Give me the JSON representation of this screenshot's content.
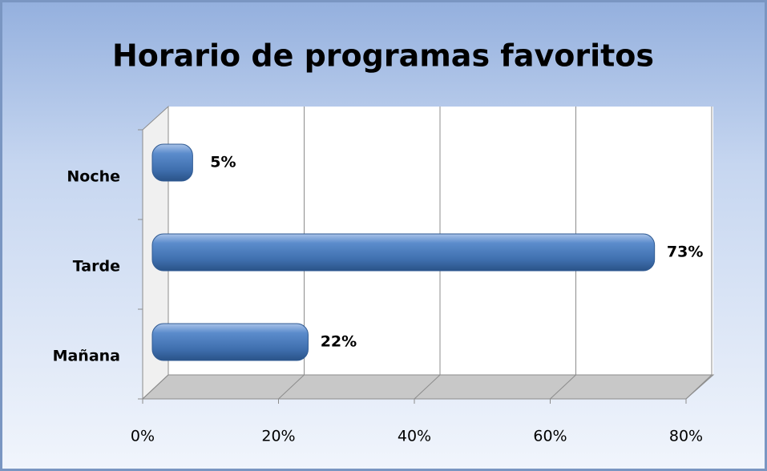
{
  "chart_data": {
    "type": "bar",
    "orientation": "horizontal",
    "title": "Horario de programas favoritos",
    "categories": [
      "Noche",
      "Tarde",
      "Mañana"
    ],
    "values": [
      5,
      73,
      22
    ],
    "value_labels": [
      "5%",
      "73%",
      "22%"
    ],
    "color": "#4f81bd",
    "xlim": [
      0,
      80
    ],
    "xticks": [
      {
        "value": 0,
        "label": "0%"
      },
      {
        "value": 20,
        "label": "20%"
      },
      {
        "value": 40,
        "label": "40%"
      },
      {
        "value": 60,
        "label": "60%"
      },
      {
        "value": 80,
        "label": "80%"
      }
    ],
    "grid": true
  }
}
